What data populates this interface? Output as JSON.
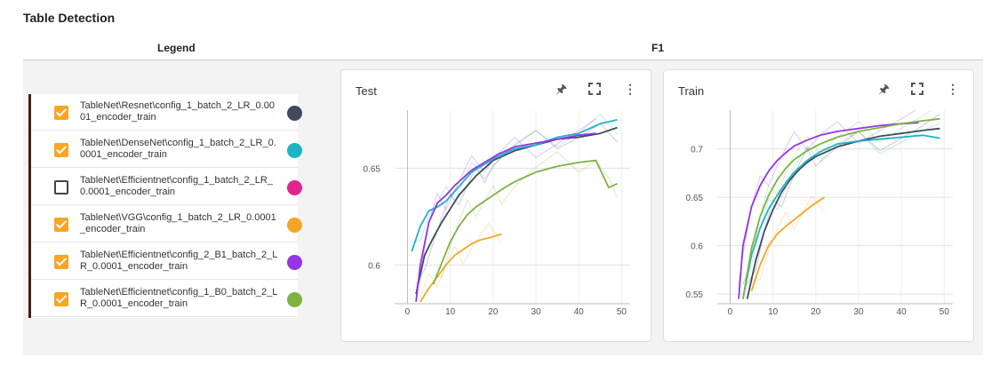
{
  "page_title": "Table Detection",
  "columns": {
    "legend": "Legend",
    "f1": "F1"
  },
  "legend": {
    "runs": [
      {
        "name": "TableNet\\Resnet\\config_1_batch_2_LR_0.0001_encoder_train",
        "checked": true,
        "color": "#3f4a5c"
      },
      {
        "name": "TableNet\\DenseNet\\config_1_batch_2_LR_0.0001_encoder_train",
        "checked": true,
        "color": "#1fb3c9"
      },
      {
        "name": "TableNet\\Efficientnet\\config_1_batch_2_LR_0.0001_encoder_train",
        "checked": false,
        "color": "#e3238f"
      },
      {
        "name": "TableNet\\VGG\\config_1_batch_2_LR_0.0001_encoder_train",
        "checked": true,
        "color": "#f6a623"
      },
      {
        "name": "TableNet\\Efficientnet\\config_2_B1_batch_2_LR_0.0001_encoder_train",
        "checked": true,
        "color": "#9334e6"
      },
      {
        "name": "TableNet\\Efficientnet\\config_1_B0_batch_2_LR_0.0001_encoder_train",
        "checked": true,
        "color": "#7cb342"
      }
    ]
  },
  "cards": {
    "test": {
      "title": "Test",
      "pin_icon": "pin-icon",
      "fullscreen_icon": "fullscreen-icon",
      "more_icon": "more-vert-icon"
    },
    "train": {
      "title": "Train",
      "pin_icon": "pin-icon",
      "fullscreen_icon": "fullscreen-icon",
      "more_icon": "more-vert-icon"
    }
  },
  "chart_data": [
    {
      "type": "line",
      "title": "Test",
      "xlim": [
        -3,
        52
      ],
      "ylim": [
        0.58,
        0.68
      ],
      "xticks": [
        0,
        10,
        20,
        30,
        40,
        50
      ],
      "yticks": [
        0.6,
        0.65
      ],
      "grid": true,
      "series": [
        {
          "name": "TableNet\\Resnet\\config_1_batch_2_LR_0.0001_encoder_train",
          "color": "#3f4a5c",
          "x": [
            2,
            4,
            6,
            8,
            10,
            12,
            14,
            16,
            18,
            20,
            25,
            30,
            35,
            40,
            45,
            49
          ],
          "y": [
            0.585,
            0.605,
            0.614,
            0.622,
            0.629,
            0.636,
            0.641,
            0.646,
            0.65,
            0.654,
            0.659,
            0.662,
            0.665,
            0.666,
            0.668,
            0.671
          ]
        },
        {
          "name": "TableNet\\DenseNet\\config_1_batch_2_LR_0.0001_encoder_train",
          "color": "#1fb3c9",
          "x": [
            1,
            3,
            5,
            7,
            9,
            11,
            13,
            15,
            18,
            21,
            25,
            30,
            35,
            40,
            45,
            49
          ],
          "y": [
            0.607,
            0.62,
            0.628,
            0.63,
            0.633,
            0.638,
            0.643,
            0.648,
            0.652,
            0.656,
            0.66,
            0.662,
            0.666,
            0.668,
            0.673,
            0.675
          ]
        },
        {
          "name": "TableNet\\VGG\\config_1_batch_2_LR_0.0001_encoder_train",
          "color": "#f6a623",
          "x": [
            3,
            5,
            7,
            9,
            11,
            13,
            15,
            17,
            19,
            22
          ],
          "y": [
            0.581,
            0.588,
            0.594,
            0.6,
            0.605,
            0.608,
            0.611,
            0.613,
            0.614,
            0.616
          ]
        },
        {
          "name": "TableNet\\Efficientnet\\config_2_B1_batch_2_LR_0.0001_encoder_train",
          "color": "#9334e6",
          "x": [
            2,
            3,
            5,
            7,
            9,
            11,
            13,
            15,
            18,
            21,
            25,
            30,
            35,
            40,
            44
          ],
          "y": [
            0.581,
            0.6,
            0.622,
            0.632,
            0.636,
            0.641,
            0.645,
            0.649,
            0.653,
            0.657,
            0.661,
            0.663,
            0.665,
            0.667,
            0.668
          ]
        },
        {
          "name": "TableNet\\Efficientnet\\config_1_B0_batch_2_LR_0.0001_encoder_train",
          "color": "#7cb342",
          "x": [
            6,
            8,
            10,
            12,
            14,
            16,
            18,
            20,
            22,
            25,
            30,
            35,
            40,
            44,
            47,
            49
          ],
          "y": [
            0.59,
            0.601,
            0.612,
            0.62,
            0.626,
            0.63,
            0.633,
            0.636,
            0.639,
            0.643,
            0.648,
            0.651,
            0.653,
            0.654,
            0.64,
            0.642
          ]
        }
      ]
    },
    {
      "type": "line",
      "title": "Train",
      "xlim": [
        -3,
        52
      ],
      "ylim": [
        0.54,
        0.74
      ],
      "xticks": [
        0,
        10,
        20,
        30,
        40,
        50
      ],
      "yticks": [
        0.55,
        0.6,
        0.65,
        0.7
      ],
      "grid": true,
      "series": [
        {
          "name": "TableNet\\Resnet\\config_1_batch_2_LR_0.0001_encoder_train",
          "color": "#3f4a5c",
          "x": [
            4,
            6,
            8,
            10,
            12,
            14,
            16,
            18,
            20,
            25,
            30,
            35,
            40,
            45,
            49
          ],
          "y": [
            0.545,
            0.585,
            0.615,
            0.637,
            0.655,
            0.668,
            0.678,
            0.686,
            0.692,
            0.702,
            0.708,
            0.713,
            0.716,
            0.719,
            0.721
          ]
        },
        {
          "name": "TableNet\\DenseNet\\config_1_batch_2_LR_0.0001_encoder_train",
          "color": "#1fb3c9",
          "x": [
            3,
            5,
            7,
            9,
            11,
            13,
            15,
            18,
            21,
            25,
            30,
            35,
            40,
            45,
            49
          ],
          "y": [
            0.545,
            0.59,
            0.618,
            0.638,
            0.652,
            0.665,
            0.676,
            0.688,
            0.697,
            0.705,
            0.708,
            0.71,
            0.712,
            0.714,
            0.711
          ]
        },
        {
          "name": "TableNet\\VGG\\config_1_batch_2_LR_0.0001_encoder_train",
          "color": "#f6a623",
          "x": [
            5,
            7,
            9,
            11,
            13,
            15,
            17,
            19,
            22
          ],
          "y": [
            0.553,
            0.58,
            0.6,
            0.612,
            0.62,
            0.627,
            0.634,
            0.641,
            0.65
          ]
        },
        {
          "name": "TableNet\\Efficientnet\\config_2_B1_batch_2_LR_0.0001_encoder_train",
          "color": "#9334e6",
          "x": [
            2,
            3,
            5,
            7,
            9,
            11,
            13,
            15,
            18,
            21,
            25,
            30,
            35,
            40,
            44
          ],
          "y": [
            0.545,
            0.6,
            0.64,
            0.662,
            0.677,
            0.688,
            0.696,
            0.703,
            0.709,
            0.714,
            0.718,
            0.721,
            0.724,
            0.726,
            0.727
          ]
        },
        {
          "name": "TableNet\\Efficientnet\\config_1_B0_batch_2_LR_0.0001_encoder_train",
          "color": "#7cb342",
          "x": [
            3,
            5,
            7,
            9,
            11,
            13,
            15,
            18,
            21,
            25,
            30,
            35,
            40,
            45,
            49
          ],
          "y": [
            0.545,
            0.597,
            0.63,
            0.652,
            0.668,
            0.68,
            0.689,
            0.698,
            0.705,
            0.712,
            0.718,
            0.722,
            0.726,
            0.729,
            0.731
          ]
        }
      ]
    }
  ]
}
